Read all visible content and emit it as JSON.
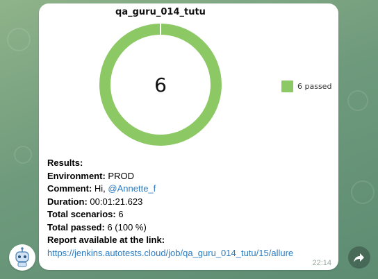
{
  "chart_data": {
    "type": "pie",
    "title": "qa_guru_014_tutu",
    "categories": [
      "passed"
    ],
    "values": [
      6
    ],
    "center_label": "6",
    "legend": [
      "6 passed"
    ],
    "legend_position": "right",
    "colors": [
      "#8cc864"
    ]
  },
  "message": {
    "results_heading": "Results:",
    "environment_label": "Environment:",
    "environment_value": " PROD",
    "comment_label": "Comment:",
    "comment_text": " Hi, ",
    "comment_mention": "@Annette_f",
    "duration_label": "Duration:",
    "duration_value": " 00:01:21.623",
    "total_scenarios_label": "Total scenarios:",
    "total_scenarios_value": " 6",
    "total_passed_label": "Total passed:",
    "total_passed_value": " 6 (100 %)",
    "report_label": "Report available at the link:",
    "report_link": "https://jenkins.autotests.cloud/job/qa_guru_014_tutu/15/allure",
    "time": "22:14"
  },
  "icons": {
    "avatar": "robot-avatar-icon",
    "share": "forward-arrow-icon"
  },
  "colors": {
    "accent_link": "#2a7ac0",
    "passed": "#8cc864"
  }
}
